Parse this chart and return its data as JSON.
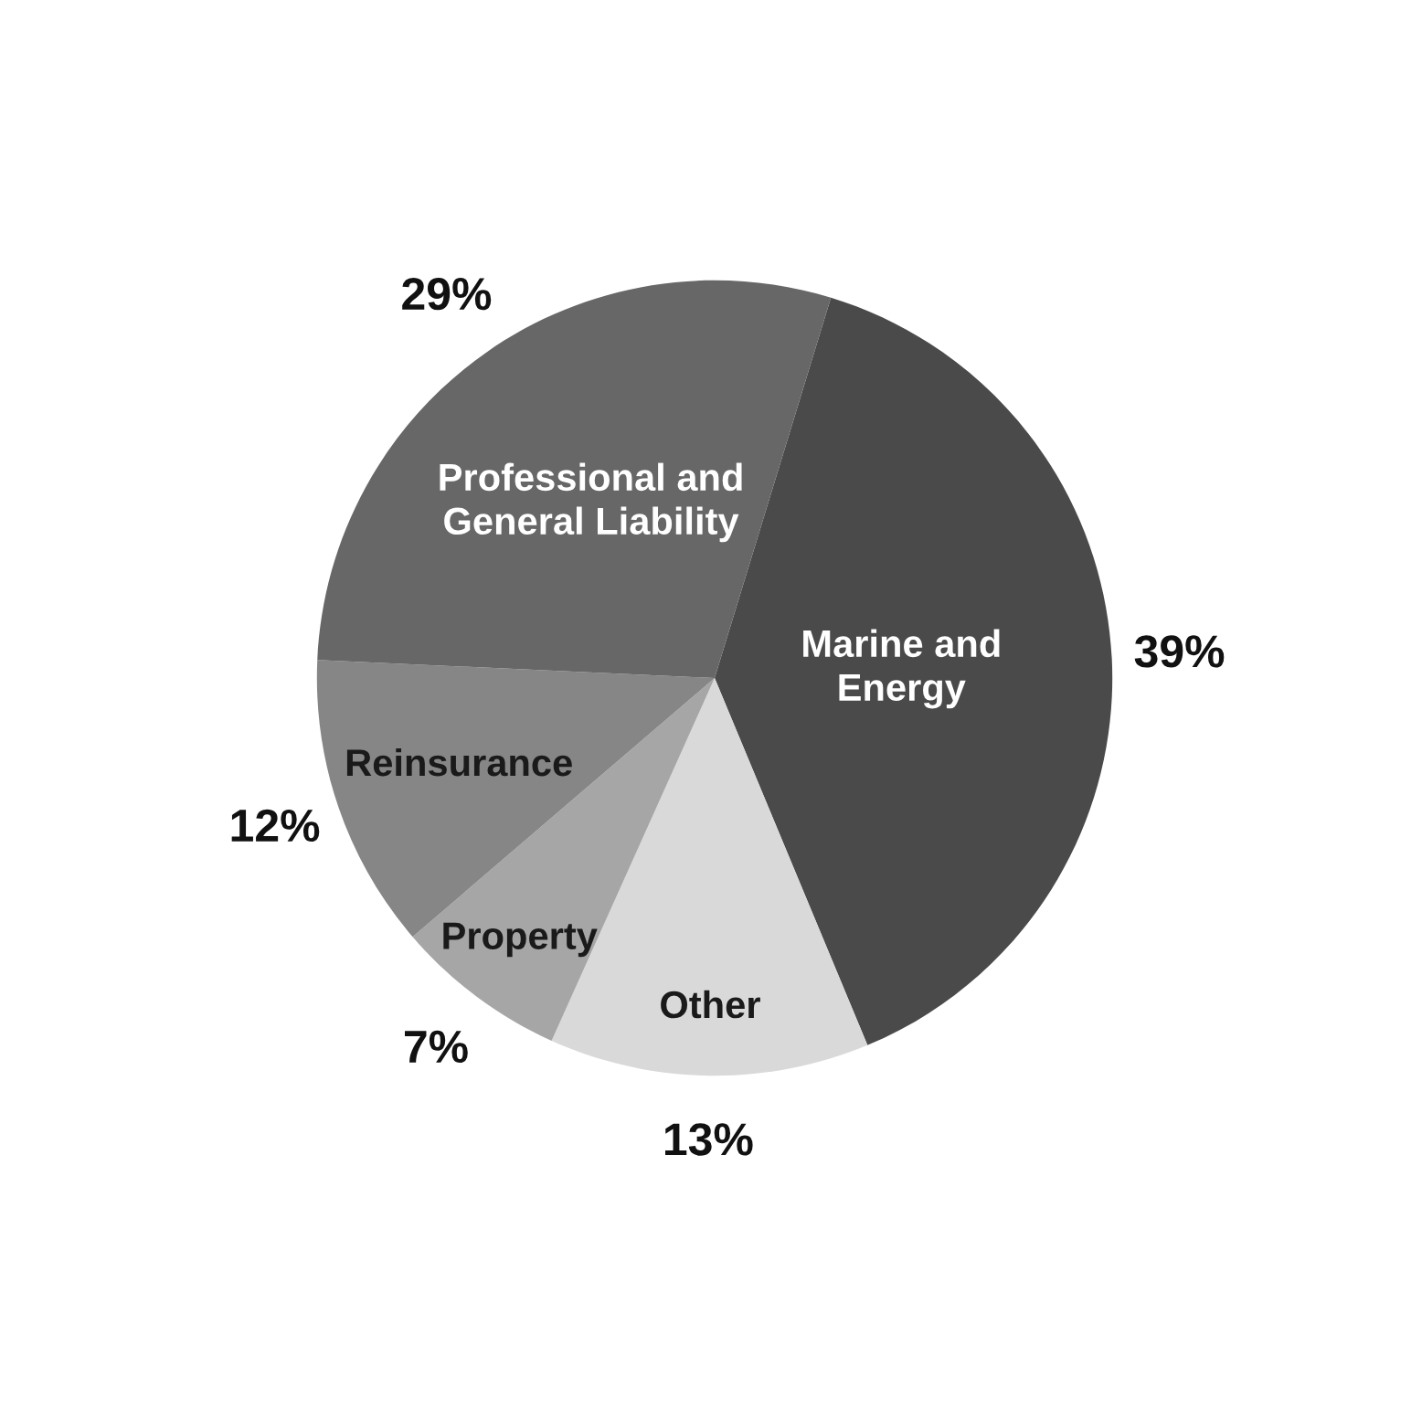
{
  "chart_data": {
    "type": "pie",
    "categories": [
      "Marine and\nEnergy",
      "Other",
      "Property",
      "Reinsurance",
      "Professional and\nGeneral Liability"
    ],
    "values": [
      39,
      13,
      7,
      12,
      29
    ],
    "value_labels": [
      "39%",
      "13%",
      "7%",
      "12%",
      "29%"
    ],
    "colors": [
      "#4a4a4a",
      "#d9d9d9",
      "#a6a6a6",
      "#868686",
      "#676767"
    ],
    "legend": false
  }
}
